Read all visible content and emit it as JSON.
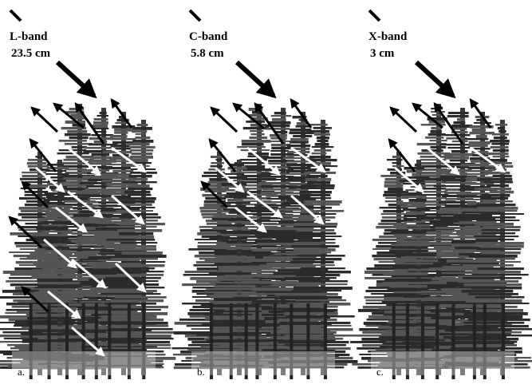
{
  "panels": [
    {
      "band": "L-band",
      "wavelength": "23.5 cm",
      "label": "a."
    },
    {
      "band": "C-band",
      "wavelength": "5.8 cm",
      "label": "b."
    },
    {
      "band": "X-band",
      "wavelength": "3 cm",
      "label": "c."
    }
  ]
}
